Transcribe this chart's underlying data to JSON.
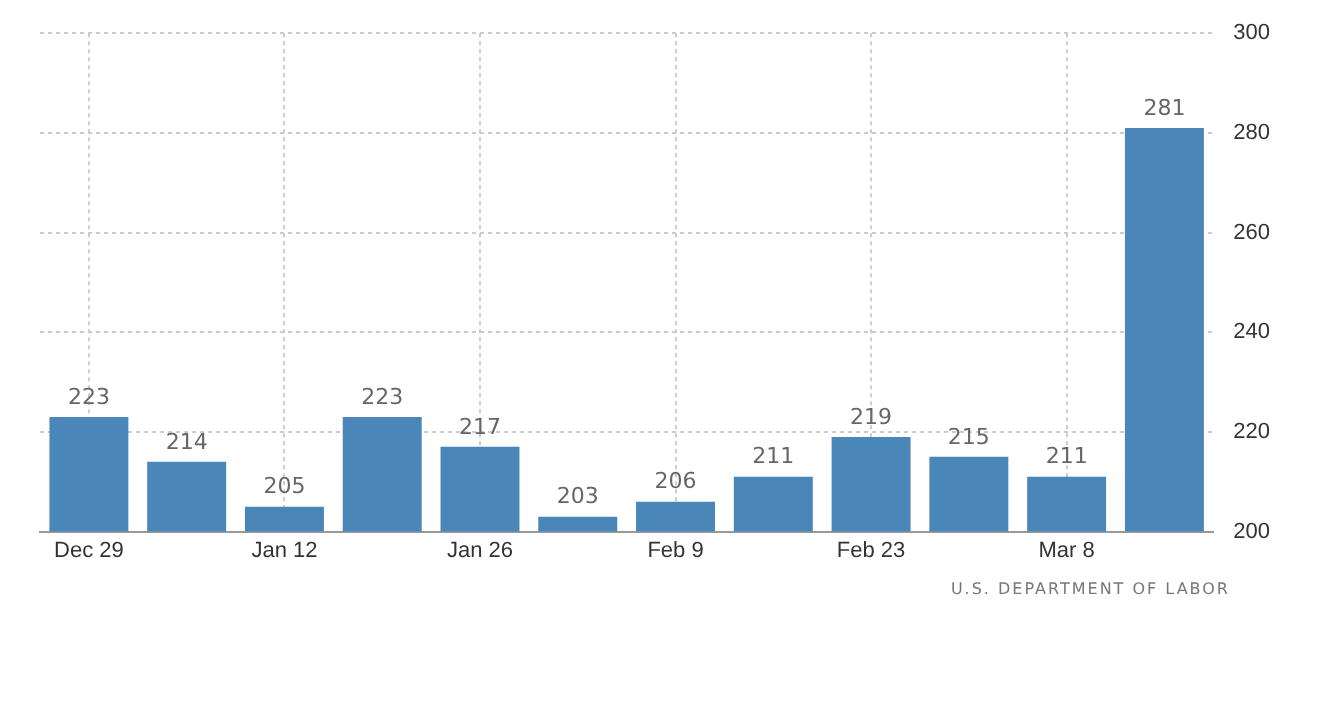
{
  "chart_data": {
    "type": "bar",
    "categories": [
      "Dec 29",
      null,
      "Jan 12",
      null,
      "Jan 26",
      null,
      "Feb 9",
      null,
      "Feb 23",
      null,
      "Mar 8",
      null
    ],
    "values": [
      223,
      214,
      205,
      223,
      217,
      203,
      206,
      211,
      219,
      215,
      211,
      281
    ],
    "color": "#4a86b8",
    "ylim": [
      200,
      300
    ],
    "yticks": [
      200,
      220,
      240,
      260,
      280,
      300
    ],
    "grid": true,
    "data_labels": true,
    "legend": false,
    "annotations": [
      "U.S. DEPARTMENT OF LABOR"
    ]
  }
}
